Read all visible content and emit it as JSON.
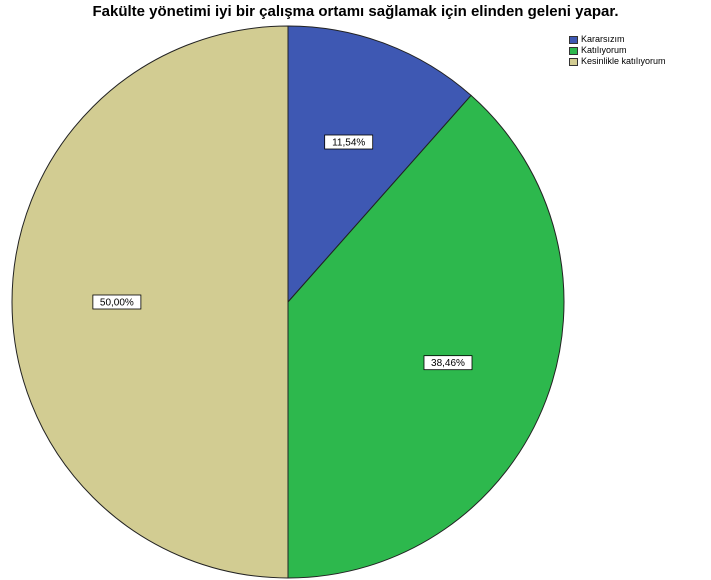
{
  "chart_data": {
    "type": "pie",
    "title": "Fakülte yönetimi iyi bir çalışma ortamı sağlamak için elinden geleni yapar.",
    "legend_position": "top-right",
    "slices": [
      {
        "name": "Kararsızım",
        "value": 11.54,
        "label": "11,54%",
        "color": "#3e58b3"
      },
      {
        "name": "Katılıyorum",
        "value": 38.46,
        "label": "38,46%",
        "color": "#2db84d"
      },
      {
        "name": "Kesinlikle katılıyorum",
        "value": 50.0,
        "label": "50,00%",
        "color": "#d2cc92"
      }
    ]
  }
}
